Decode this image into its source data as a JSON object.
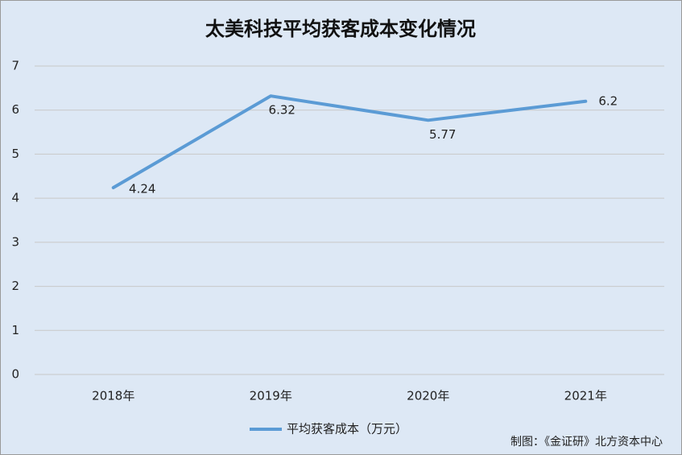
{
  "chart_data": {
    "type": "line",
    "title": "太美科技平均获客成本变化情况",
    "categories": [
      "2018年",
      "2019年",
      "2020年",
      "2021年"
    ],
    "series": [
      {
        "name": "平均获客成本（万元）",
        "color": "#5b9bd5",
        "values": [
          4.24,
          6.32,
          5.77,
          6.2
        ]
      }
    ],
    "ylim": [
      0,
      7
    ],
    "yticks": [
      0,
      1,
      2,
      3,
      4,
      5,
      6,
      7
    ],
    "grid": true,
    "legend": "bottom",
    "annotation": "制图：《金证研》北方资本中心"
  }
}
